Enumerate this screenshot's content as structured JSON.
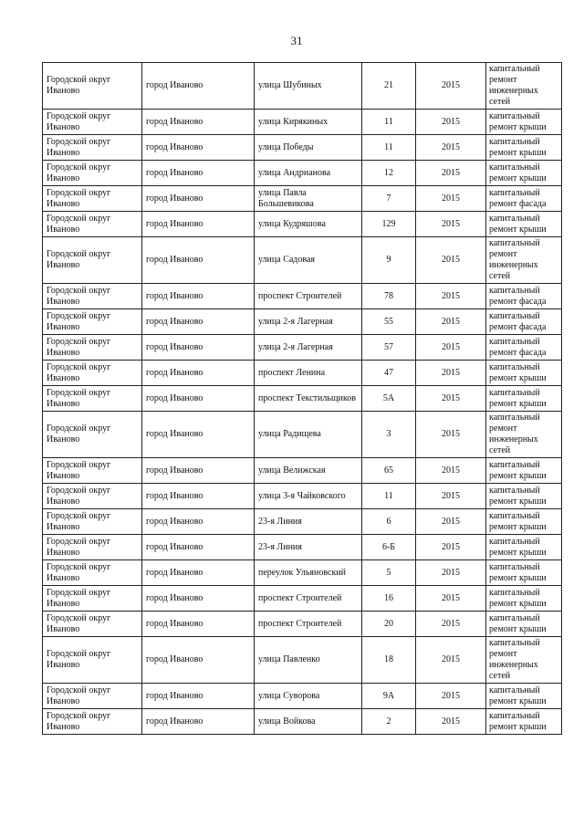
{
  "page_number": "31",
  "rows": [
    [
      "Городской округ Иваново",
      "город Иваново",
      "улица Шубиных",
      "21",
      "2015",
      "капитальный ремонт инженерных сетей"
    ],
    [
      "Городской округ Иваново",
      "город Иваново",
      "улица Кирякиных",
      "11",
      "2015",
      "капитальный ремонт крыши"
    ],
    [
      "Городской округ Иваново",
      "город Иваново",
      "улица Победы",
      "11",
      "2015",
      "капитальный ремонт крыши"
    ],
    [
      "Городской округ Иваново",
      "город Иваново",
      "улица Андрианова",
      "12",
      "2015",
      "капитальный ремонт крыши"
    ],
    [
      "Городской округ Иваново",
      "город Иваново",
      "улица Павла Большевикова",
      "7",
      "2015",
      "капитальный ремонт фасада"
    ],
    [
      "Городской округ Иваново",
      "город Иваново",
      "улица Кудряшова",
      "129",
      "2015",
      "капитальный ремонт крыши"
    ],
    [
      "Городской округ Иваново",
      "город Иваново",
      "улица Садовая",
      "9",
      "2015",
      "капитальный ремонт инженерных сетей"
    ],
    [
      "Городской округ Иваново",
      "город Иваново",
      "проспект Строителей",
      "78",
      "2015",
      "капитальный ремонт фасада"
    ],
    [
      "Городской округ Иваново",
      "город Иваново",
      "улица 2-я Лагерная",
      "55",
      "2015",
      "капитальный ремонт фасада"
    ],
    [
      "Городской округ Иваново",
      "город Иваново",
      "улица 2-я Лагерная",
      "57",
      "2015",
      "капитальный ремонт фасада"
    ],
    [
      "Городской округ Иваново",
      "город Иваново",
      "проспект Ленина",
      "47",
      "2015",
      "капитальный ремонт крыши"
    ],
    [
      "Городской округ Иваново",
      "город Иваново",
      "проспект Текстильщиков",
      "5А",
      "2015",
      "капитальный ремонт крыши"
    ],
    [
      "Городской округ Иваново",
      "город Иваново",
      "улица Радищева",
      "3",
      "2015",
      "капитальный ремонт инженерных сетей"
    ],
    [
      "Городской округ Иваново",
      "город Иваново",
      "улица Велижская",
      "65",
      "2015",
      "капитальный ремонт крыши"
    ],
    [
      "Городской округ Иваново",
      "город Иваново",
      "улица 3-я Чайковского",
      "11",
      "2015",
      "капитальный ремонт крыши"
    ],
    [
      "Городской округ Иваново",
      "город Иваново",
      "23-я Линия",
      "6",
      "2015",
      "капитальный ремонт крыши"
    ],
    [
      "Городской округ Иваново",
      "город Иваново",
      "23-я Линия",
      "6-Б",
      "2015",
      "капитальный ремонт крыши"
    ],
    [
      "Городской округ Иваново",
      "город Иваново",
      "переулок Ульяновский",
      "5",
      "2015",
      "капитальный ремонт крыши"
    ],
    [
      "Городской округ Иваново",
      "город Иваново",
      "проспект Строителей",
      "16",
      "2015",
      "капитальный ремонт крыши"
    ],
    [
      "Городской округ Иваново",
      "город Иваново",
      "проспект Строителей",
      "20",
      "2015",
      "капитальный ремонт крыши"
    ],
    [
      "Городской округ Иваново",
      "город Иваново",
      "улица Павленко",
      "18",
      "2015",
      "капитальный ремонт инженерных сетей"
    ],
    [
      "Городской округ Иваново",
      "город Иваново",
      "улица Суворова",
      "9А",
      "2015",
      "капитальный ремонт крыши"
    ],
    [
      "Городской округ Иваново",
      "город Иваново",
      "улица Войкова",
      "2",
      "2015",
      "капитальный ремонт крыши"
    ]
  ]
}
